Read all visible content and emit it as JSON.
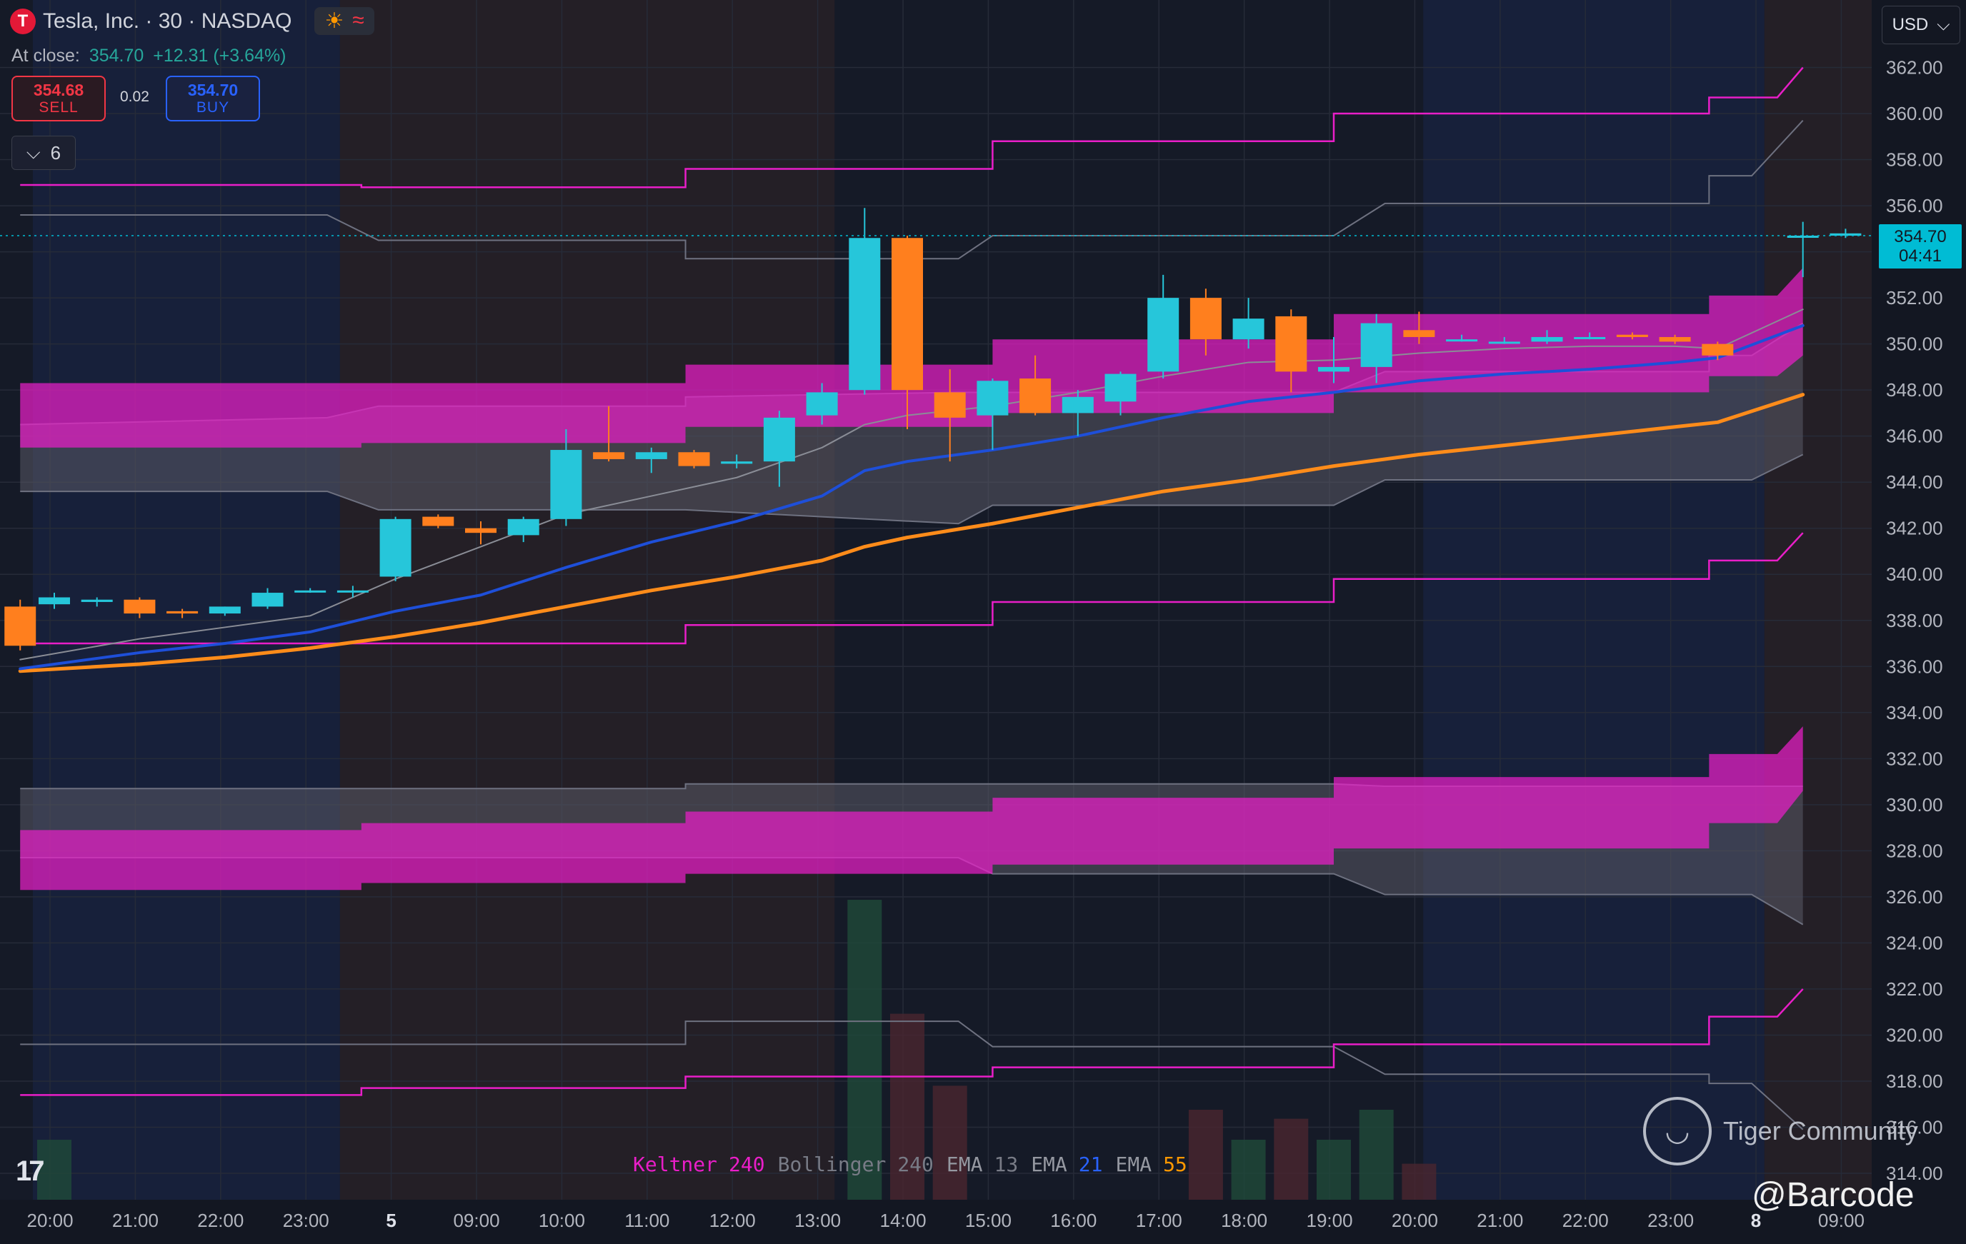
{
  "header": {
    "logo_glyph": "T",
    "title": "Tesla, Inc. · 30 · NASDAQ",
    "icon_sun": "☀",
    "icon_waves": "≈",
    "at_close_label": "At close:",
    "close_price": "354.70",
    "close_change": "+12.31 (+3.64%)"
  },
  "trade": {
    "sell_price": "354.68",
    "sell_label": "SELL",
    "spread": "0.02",
    "buy_price": "354.70",
    "buy_label": "BUY"
  },
  "indicators_collapse": {
    "chevron": "⌵",
    "count": "6"
  },
  "currency": {
    "label": "USD",
    "chevron": "⌵"
  },
  "price_label": {
    "price": "354.70",
    "countdown": "04:41"
  },
  "legend": [
    {
      "name": "Keltner",
      "value": "240",
      "name_color": "#e91ec8",
      "value_color": "#e91ec8"
    },
    {
      "name": "Bollinger",
      "value": "240",
      "name_color": "#787b86",
      "value_color": "#787b86"
    },
    {
      "name": "EMA",
      "value": "13",
      "name_color": "#9598a1",
      "value_color": "#787b86"
    },
    {
      "name": "EMA",
      "value": "21",
      "name_color": "#9598a1",
      "value_color": "#2962ff"
    },
    {
      "name": "EMA",
      "value": "55",
      "name_color": "#9598a1",
      "value_color": "#ff9800"
    }
  ],
  "branding": {
    "tv_logo": "17",
    "watermark": "Tiger Community",
    "watermark_glyph": "◡",
    "handle": "@Barcode"
  },
  "colors": {
    "up": "#26c6da",
    "down": "#ff7f1e",
    "keltner": "#e91ec8",
    "bollinger": "#6e7180",
    "ema13": "#8a8d96",
    "ema21": "#1e4fd9",
    "ema55": "#ff8c1a"
  },
  "chart_data": {
    "type": "candlestick",
    "title": "Tesla, Inc. · 30 · NASDAQ",
    "xlabel": "",
    "ylabel": "",
    "ylim": [
      313,
      363.5
    ],
    "y_ticks": [
      "362.00",
      "360.00",
      "358.00",
      "356.00",
      "354.00",
      "352.00",
      "350.00",
      "348.00",
      "346.00",
      "344.00",
      "342.00",
      "340.00",
      "338.00",
      "336.00",
      "334.00",
      "332.00",
      "330.00",
      "328.00",
      "326.00",
      "324.00",
      "322.00",
      "320.00",
      "318.00",
      "316.00",
      "314.00"
    ],
    "x_ticks": [
      "20:00",
      "21:00",
      "22:00",
      "23:00",
      "5",
      "09:00",
      "10:00",
      "11:00",
      "12:00",
      "13:00",
      "14:00",
      "15:00",
      "16:00",
      "17:00",
      "18:00",
      "19:00",
      "20:00",
      "21:00",
      "22:00",
      "23:00",
      "8",
      "09:00"
    ],
    "sessions": [
      {
        "from": 0,
        "to": 3.6,
        "kind": "extended"
      },
      {
        "from": 3.6,
        "to": 9.4,
        "kind": "premarket"
      },
      {
        "from": 9.4,
        "to": 16.3,
        "kind": "regular"
      },
      {
        "from": 16.3,
        "to": 20.3,
        "kind": "extended"
      },
      {
        "from": 20.3,
        "to": 21.3,
        "kind": "premarket"
      }
    ],
    "candles": [
      {
        "t": -0.4,
        "o": 338.6,
        "h": 338.9,
        "l": 336.7,
        "c": 336.9
      },
      {
        "t": 0.0,
        "o": 338.7,
        "h": 339.2,
        "l": 338.5,
        "c": 339.0
      },
      {
        "t": 0.5,
        "o": 338.8,
        "h": 339.0,
        "l": 338.6,
        "c": 338.9
      },
      {
        "t": 1.0,
        "o": 338.9,
        "h": 339.0,
        "l": 338.1,
        "c": 338.3
      },
      {
        "t": 1.5,
        "o": 338.4,
        "h": 338.5,
        "l": 338.1,
        "c": 338.3
      },
      {
        "t": 2.0,
        "o": 338.3,
        "h": 338.6,
        "l": 338.2,
        "c": 338.6
      },
      {
        "t": 2.5,
        "o": 338.6,
        "h": 339.4,
        "l": 338.5,
        "c": 339.2
      },
      {
        "t": 3.0,
        "o": 339.3,
        "h": 339.4,
        "l": 339.2,
        "c": 339.3
      },
      {
        "t": 3.5,
        "o": 339.3,
        "h": 339.5,
        "l": 339.0,
        "c": 339.3
      },
      {
        "t": 4.0,
        "o": 339.9,
        "h": 342.5,
        "l": 339.7,
        "c": 342.4
      },
      {
        "t": 4.5,
        "o": 342.5,
        "h": 342.6,
        "l": 342.0,
        "c": 342.1
      },
      {
        "t": 5.0,
        "o": 342.0,
        "h": 342.3,
        "l": 341.3,
        "c": 341.8
      },
      {
        "t": 5.5,
        "o": 341.7,
        "h": 342.5,
        "l": 341.4,
        "c": 342.4
      },
      {
        "t": 6.0,
        "o": 342.4,
        "h": 346.3,
        "l": 342.1,
        "c": 345.4
      },
      {
        "t": 6.5,
        "o": 345.3,
        "h": 347.3,
        "l": 344.9,
        "c": 345.0
      },
      {
        "t": 7.0,
        "o": 345.0,
        "h": 345.5,
        "l": 344.4,
        "c": 345.3
      },
      {
        "t": 7.5,
        "o": 345.3,
        "h": 345.4,
        "l": 344.6,
        "c": 344.7
      },
      {
        "t": 8.0,
        "o": 344.8,
        "h": 345.2,
        "l": 344.6,
        "c": 344.9
      },
      {
        "t": 8.5,
        "o": 344.9,
        "h": 347.1,
        "l": 343.8,
        "c": 346.8
      },
      {
        "t": 9.0,
        "o": 346.9,
        "h": 348.3,
        "l": 346.5,
        "c": 347.9
      },
      {
        "t": 9.5,
        "o": 348.0,
        "h": 355.9,
        "l": 347.8,
        "c": 354.6
      },
      {
        "t": 10.0,
        "o": 354.6,
        "h": 354.7,
        "l": 346.3,
        "c": 348.0
      },
      {
        "t": 10.5,
        "o": 347.9,
        "h": 348.9,
        "l": 344.9,
        "c": 346.8
      },
      {
        "t": 11.0,
        "o": 346.9,
        "h": 348.5,
        "l": 345.4,
        "c": 348.4
      },
      {
        "t": 11.5,
        "o": 348.5,
        "h": 349.5,
        "l": 346.9,
        "c": 347.0
      },
      {
        "t": 12.0,
        "o": 347.0,
        "h": 348.0,
        "l": 346.0,
        "c": 347.7
      },
      {
        "t": 12.5,
        "o": 347.5,
        "h": 348.8,
        "l": 346.9,
        "c": 348.7
      },
      {
        "t": 13.0,
        "o": 348.8,
        "h": 353.0,
        "l": 348.5,
        "c": 352.0
      },
      {
        "t": 13.5,
        "o": 352.0,
        "h": 352.4,
        "l": 349.5,
        "c": 350.2
      },
      {
        "t": 14.0,
        "o": 350.2,
        "h": 352.0,
        "l": 349.8,
        "c": 351.1
      },
      {
        "t": 14.5,
        "o": 351.2,
        "h": 351.5,
        "l": 347.9,
        "c": 348.8
      },
      {
        "t": 15.0,
        "o": 348.8,
        "h": 350.3,
        "l": 348.3,
        "c": 349.0
      },
      {
        "t": 15.5,
        "o": 349.0,
        "h": 351.3,
        "l": 348.3,
        "c": 350.9
      },
      {
        "t": 16.0,
        "o": 350.6,
        "h": 351.4,
        "l": 350.0,
        "c": 350.3
      },
      {
        "t": 16.5,
        "o": 350.2,
        "h": 350.4,
        "l": 350.1,
        "c": 350.2
      },
      {
        "t": 17.0,
        "o": 350.1,
        "h": 350.3,
        "l": 350.0,
        "c": 350.1
      },
      {
        "t": 17.5,
        "o": 350.1,
        "h": 350.6,
        "l": 350.0,
        "c": 350.3
      },
      {
        "t": 18.0,
        "o": 350.3,
        "h": 350.5,
        "l": 350.2,
        "c": 350.3
      },
      {
        "t": 18.5,
        "o": 350.4,
        "h": 350.5,
        "l": 350.2,
        "c": 350.3
      },
      {
        "t": 19.0,
        "o": 350.3,
        "h": 350.4,
        "l": 350.0,
        "c": 350.1
      },
      {
        "t": 19.5,
        "o": 350.0,
        "h": 350.1,
        "l": 349.3,
        "c": 349.5
      },
      {
        "t": 20.5,
        "o": 354.7,
        "h": 355.3,
        "l": 352.9,
        "c": 354.7
      },
      {
        "t": 21.0,
        "o": 354.7,
        "h": 355.0,
        "l": 354.6,
        "c": 354.8
      }
    ],
    "volume": [
      {
        "t": 9.5,
        "v": 1.0,
        "up": true
      },
      {
        "t": 10.0,
        "v": 0.62,
        "up": false
      },
      {
        "t": 10.5,
        "v": 0.38,
        "up": false
      },
      {
        "t": 13.5,
        "v": 0.3,
        "up": false
      },
      {
        "t": 14.0,
        "v": 0.2,
        "up": true
      },
      {
        "t": 14.5,
        "v": 0.27,
        "up": false
      },
      {
        "t": 15.0,
        "v": 0.2,
        "up": true
      },
      {
        "t": 15.5,
        "v": 0.3,
        "up": true
      },
      {
        "t": 16.0,
        "v": 0.12,
        "up": false
      },
      {
        "t": 0.0,
        "v": 0.2,
        "up": true
      }
    ],
    "series": [
      {
        "name": "EMA 55",
        "color": "#ff8c1a",
        "width": 5,
        "x": [
          -0.4,
          1,
          2,
          3,
          4,
          5,
          6,
          7,
          8,
          9,
          9.5,
          10,
          11,
          12,
          13,
          14,
          15,
          16,
          17,
          18,
          19,
          19.5,
          20.5
        ],
        "y": [
          335.8,
          336.1,
          336.4,
          336.8,
          337.3,
          337.9,
          338.6,
          339.3,
          339.9,
          340.6,
          341.2,
          341.6,
          342.2,
          342.9,
          343.6,
          344.1,
          344.7,
          345.2,
          345.6,
          346.0,
          346.4,
          346.6,
          347.8
        ]
      },
      {
        "name": "EMA 21",
        "color": "#1e4fd9",
        "width": 4,
        "x": [
          -0.4,
          1,
          2,
          3,
          4,
          5,
          6,
          7,
          8,
          9,
          9.5,
          10,
          11,
          12,
          13,
          14,
          15,
          16,
          17,
          18,
          19,
          19.5,
          20.5
        ],
        "y": [
          335.9,
          336.6,
          337.0,
          337.5,
          338.4,
          339.1,
          340.3,
          341.4,
          342.3,
          343.4,
          344.5,
          344.9,
          345.4,
          346.0,
          346.8,
          347.5,
          347.9,
          348.4,
          348.7,
          348.9,
          349.2,
          349.4,
          350.8
        ]
      },
      {
        "name": "EMA 13",
        "color": "#8a8d96",
        "width": 2,
        "x": [
          -0.4,
          1,
          2,
          3,
          4,
          5,
          6,
          7,
          8,
          9,
          9.5,
          10,
          11,
          12,
          13,
          14,
          15,
          16,
          17,
          18,
          19,
          19.5,
          20.5
        ],
        "y": [
          336.3,
          337.2,
          337.7,
          338.2,
          339.8,
          341.2,
          342.6,
          343.4,
          344.2,
          345.5,
          346.5,
          346.9,
          347.3,
          347.9,
          348.6,
          349.2,
          349.3,
          349.6,
          349.8,
          349.9,
          349.9,
          349.8,
          351.5
        ]
      }
    ],
    "bands": {
      "keltner_lines": [
        {
          "x": [
            -0.4,
            3.6,
            3.6,
            7.4,
            7.4,
            11.0,
            11.0,
            15.0,
            15.0,
            19.4,
            19.4,
            20.2,
            20.5
          ],
          "y": [
            356.9,
            356.9,
            356.8,
            356.8,
            357.6,
            357.6,
            358.8,
            358.8,
            360.0,
            360.0,
            360.7,
            360.7,
            362.0
          ]
        },
        {
          "x": [
            -0.4,
            3.6,
            3.6,
            7.4,
            7.4,
            11.0,
            11.0,
            15.0,
            15.0,
            19.4,
            19.4,
            20.2,
            20.5
          ],
          "y": [
            337.0,
            337.0,
            337.0,
            337.0,
            337.8,
            337.8,
            338.8,
            338.8,
            339.8,
            339.8,
            340.6,
            340.6,
            341.8
          ]
        },
        {
          "x": [
            -0.4,
            3.6,
            3.6,
            7.4,
            7.4,
            11.0,
            11.0,
            15.0,
            15.0,
            19.4,
            19.4,
            20.2,
            20.5
          ],
          "y": [
            317.4,
            317.4,
            317.7,
            317.7,
            318.2,
            318.2,
            318.6,
            318.6,
            319.6,
            319.6,
            320.8,
            320.8,
            322.0
          ]
        }
      ],
      "keltner_fills": [
        {
          "x": [
            -0.4,
            3.6,
            3.6,
            7.4,
            7.4,
            11.0,
            11.0,
            15.0,
            15.0,
            19.4,
            19.4,
            20.2,
            20.5
          ],
          "top": [
            348.3,
            348.3,
            348.3,
            348.3,
            349.1,
            349.1,
            350.2,
            350.2,
            351.3,
            351.3,
            352.1,
            352.1,
            353.3
          ],
          "bot": [
            345.5,
            345.5,
            345.7,
            345.7,
            346.4,
            346.4,
            347.0,
            347.0,
            347.9,
            347.9,
            348.6,
            348.6,
            349.5
          ]
        },
        {
          "x": [
            -0.4,
            3.6,
            3.6,
            7.4,
            7.4,
            11.0,
            11.0,
            15.0,
            15.0,
            19.4,
            19.4,
            20.2,
            20.5
          ],
          "top": [
            328.9,
            328.9,
            329.2,
            329.2,
            329.7,
            329.7,
            330.3,
            330.3,
            331.2,
            331.2,
            332.2,
            332.2,
            333.4
          ],
          "bot": [
            326.3,
            326.3,
            326.6,
            326.6,
            327.0,
            327.0,
            327.4,
            327.4,
            328.1,
            328.1,
            329.2,
            329.2,
            330.6
          ]
        }
      ],
      "bollinger_lines": [
        {
          "x": [
            -0.4,
            3.2,
            3.8,
            7.4,
            7.4,
            10.6,
            11.0,
            15.0,
            15.6,
            19.4,
            19.4,
            19.9,
            20.5
          ],
          "y": [
            355.6,
            355.6,
            354.5,
            354.5,
            353.7,
            353.7,
            354.7,
            354.7,
            356.1,
            356.1,
            357.3,
            357.3,
            359.7
          ]
        },
        {
          "x": [
            -0.4,
            3.2,
            3.8,
            7.4,
            7.4,
            10.6,
            11.0,
            15.0,
            15.6,
            19.4,
            19.4,
            19.9,
            20.5
          ],
          "y": [
            319.6,
            319.6,
            319.6,
            319.6,
            320.6,
            320.6,
            319.5,
            319.5,
            318.3,
            318.3,
            317.9,
            317.9,
            315.9
          ]
        }
      ],
      "bollinger_fills": [
        {
          "x": [
            -0.4,
            3.2,
            3.8,
            7.4,
            7.4,
            10.6,
            11.0,
            15.0,
            15.6,
            19.4,
            19.4,
            19.9,
            20.5
          ],
          "top": [
            346.5,
            346.8,
            347.3,
            347.3,
            347.7,
            347.9,
            347.9,
            347.9,
            348.8,
            348.8,
            349.5,
            349.5,
            350.9
          ],
          "bot": [
            343.6,
            343.6,
            342.8,
            342.8,
            342.8,
            342.2,
            343.0,
            343.0,
            344.1,
            344.1,
            344.1,
            344.1,
            345.2
          ]
        },
        {
          "x": [
            -0.4,
            3.2,
            3.8,
            7.4,
            7.4,
            10.6,
            11.0,
            15.0,
            15.6,
            19.4,
            19.4,
            19.9,
            20.5
          ],
          "top": [
            330.7,
            330.7,
            330.7,
            330.7,
            330.9,
            330.9,
            330.9,
            330.9,
            330.8,
            330.8,
            330.8,
            330.8,
            330.8
          ],
          "bot": [
            327.7,
            327.7,
            327.7,
            327.7,
            327.7,
            327.7,
            327.0,
            327.0,
            326.1,
            326.1,
            326.1,
            326.1,
            324.8
          ]
        }
      ]
    },
    "last_price": 354.7,
    "grid": true
  }
}
